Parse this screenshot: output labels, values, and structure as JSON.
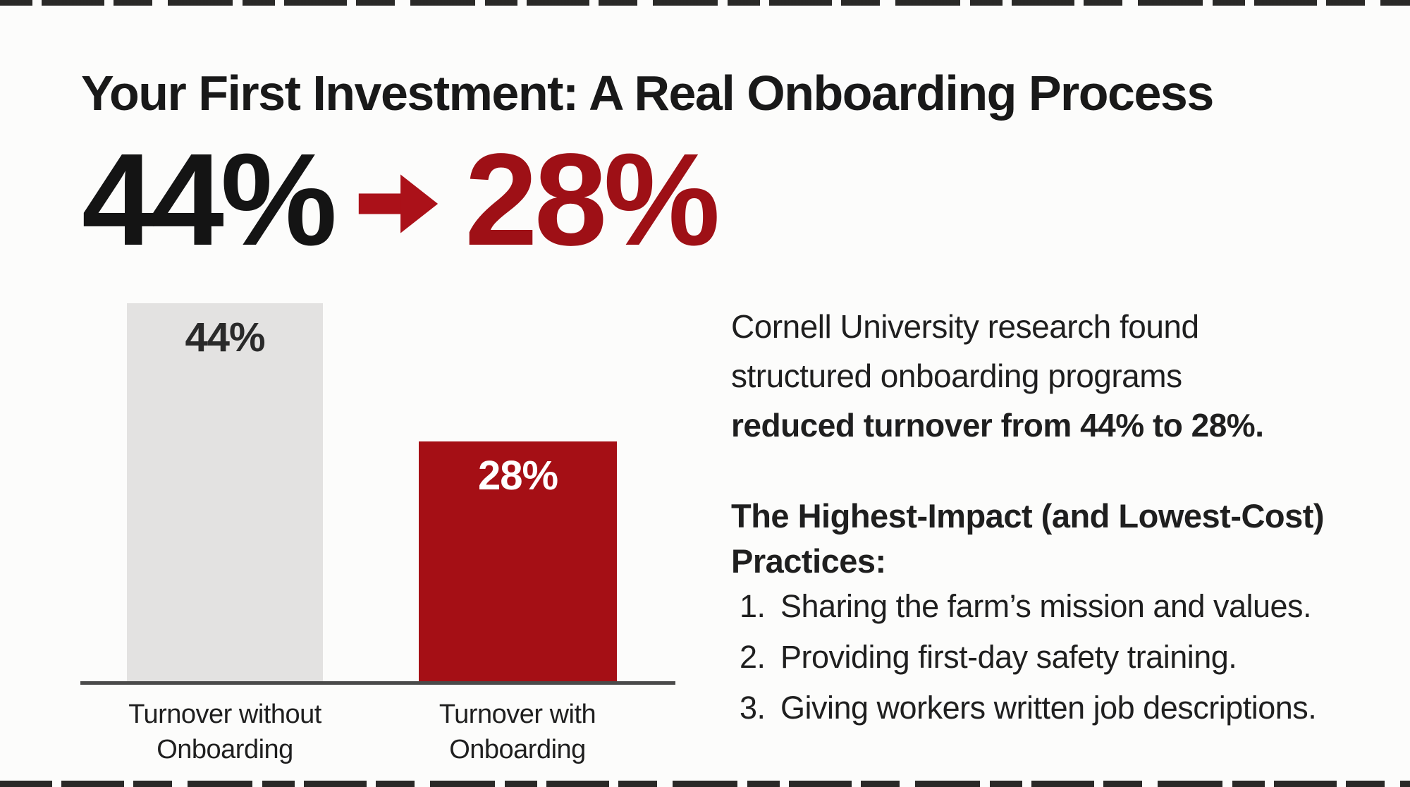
{
  "title": "Your First Investment: A Real Onboarding Process",
  "stat": {
    "from": "44%",
    "to": "28%",
    "arrow": "right-arrow"
  },
  "chart_data": {
    "type": "bar",
    "categories": [
      "Turnover without Onboarding",
      "Turnover with Onboarding"
    ],
    "categories_wrapped": [
      [
        "Turnover without",
        "Onboarding"
      ],
      [
        "Turnover with",
        "Onboarding"
      ]
    ],
    "values": [
      44,
      28
    ],
    "value_labels": [
      "44%",
      "28%"
    ],
    "bar_colors": [
      "#e3e2e1",
      "#a50f15"
    ],
    "label_colors": [
      "#2a2a2a",
      "#ffffff"
    ],
    "title": "",
    "xlabel": "",
    "ylabel": "",
    "ylim": [
      0,
      44
    ],
    "grid": false,
    "legend": false
  },
  "aside": {
    "paragraph": {
      "line1": "Cornell University research found",
      "line2": "structured onboarding programs",
      "line3_bold": "reduced turnover from 44% to 28%."
    },
    "heading_line1": "The Highest-Impact (and Lowest-Cost)",
    "heading_line2": "Practices:",
    "items": [
      {
        "num": "1.",
        "text": "Sharing the farm’s mission and values."
      },
      {
        "num": "2.",
        "text": "Providing first-day safety training."
      },
      {
        "num": "3.",
        "text": "Giving workers written job descriptions."
      }
    ]
  },
  "colors": {
    "background": "#fcfcfb",
    "title_text": "#191919",
    "stat_from": "#141414",
    "stat_to": "#9e1016",
    "arrow": "#ab1119",
    "bar_gray": "#e3e2e1",
    "bar_red": "#a50f15",
    "axis_line": "#4a4a4a",
    "body_text": "#1f1f1f",
    "edge_strip": "#181715"
  }
}
